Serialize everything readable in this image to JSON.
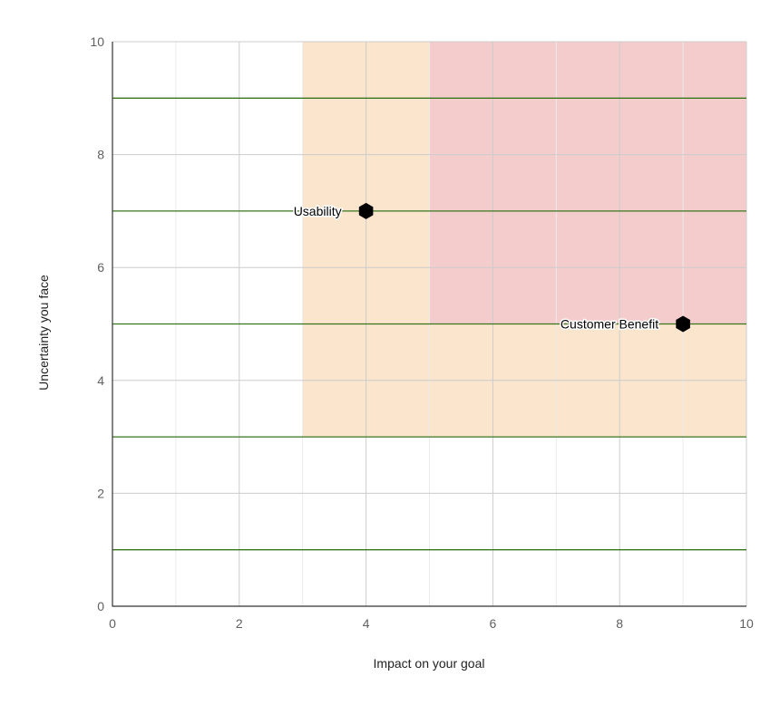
{
  "chart_data": {
    "type": "scatter",
    "title": "",
    "xlabel": "Impact on your goal",
    "ylabel": "Uncertainty you face",
    "xlim": [
      0,
      10
    ],
    "ylim": [
      0,
      10
    ],
    "x_ticks": [
      0,
      2,
      4,
      6,
      8,
      10
    ],
    "y_ticks": [
      0,
      2,
      4,
      6,
      8,
      10
    ],
    "grid": true,
    "legend": "none",
    "points": [
      {
        "label": "Usability",
        "x": 4,
        "y": 7
      },
      {
        "label": "Customer Benefit",
        "x": 9,
        "y": 5
      }
    ],
    "regions": [
      {
        "name": "medium-risk-zone",
        "x0": 3,
        "x1": 10,
        "y0": 3,
        "y1": 10,
        "color": "#fce5cd"
      },
      {
        "name": "high-risk-zone",
        "x0": 5,
        "x1": 10,
        "y0": 5,
        "y1": 10,
        "color": "#f4cccc"
      }
    ],
    "horizontal_lines": {
      "values": [
        1,
        3,
        5,
        7,
        9
      ],
      "color": "#38761d"
    }
  },
  "colors": {
    "major_grid": "#cccccc",
    "minor_grid": "#ebebeb",
    "axis": "#333333",
    "marker": "#000000"
  }
}
